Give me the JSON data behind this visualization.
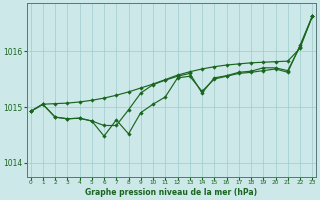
{
  "background_color": "#cce8e8",
  "grid_color": "#a0cccc",
  "line_color": "#1a6620",
  "xlabel": "Graphe pression niveau de la mer (hPa)",
  "ylim": [
    1013.75,
    1016.85
  ],
  "yticks": [
    1014,
    1015,
    1016
  ],
  "xlim": [
    -0.3,
    23.3
  ],
  "xtick_labels": [
    "0",
    "1",
    "2",
    "3",
    "4",
    "5",
    "6",
    "7",
    "8",
    "9",
    "10",
    "11",
    "12",
    "13",
    "14",
    "15",
    "16",
    "17",
    "18",
    "19",
    "20",
    "21",
    "22",
    "23"
  ],
  "series_smooth": [
    1014.92,
    1015.05,
    1015.06,
    1015.07,
    1015.09,
    1015.12,
    1015.16,
    1015.21,
    1015.27,
    1015.34,
    1015.41,
    1015.49,
    1015.57,
    1015.63,
    1015.68,
    1015.72,
    1015.75,
    1015.77,
    1015.79,
    1015.8,
    1015.81,
    1015.82,
    1016.05,
    1016.62
  ],
  "series_jagged": [
    1014.92,
    1015.05,
    1014.82,
    1014.79,
    1014.8,
    1014.75,
    1014.48,
    1014.77,
    1014.52,
    1014.9,
    1015.05,
    1015.18,
    1015.52,
    1015.55,
    1015.28,
    1015.5,
    1015.55,
    1015.6,
    1015.62,
    1015.65,
    1015.68,
    1015.62,
    1016.1,
    1016.62
  ],
  "series_mid": [
    1014.92,
    1015.05,
    1014.82,
    1014.79,
    1014.8,
    1014.75,
    1014.67,
    1014.67,
    1014.95,
    1015.25,
    1015.4,
    1015.48,
    1015.55,
    1015.6,
    1015.25,
    1015.52,
    1015.56,
    1015.62,
    1015.64,
    1015.7,
    1015.7,
    1015.65,
    1016.08,
    1016.62
  ]
}
